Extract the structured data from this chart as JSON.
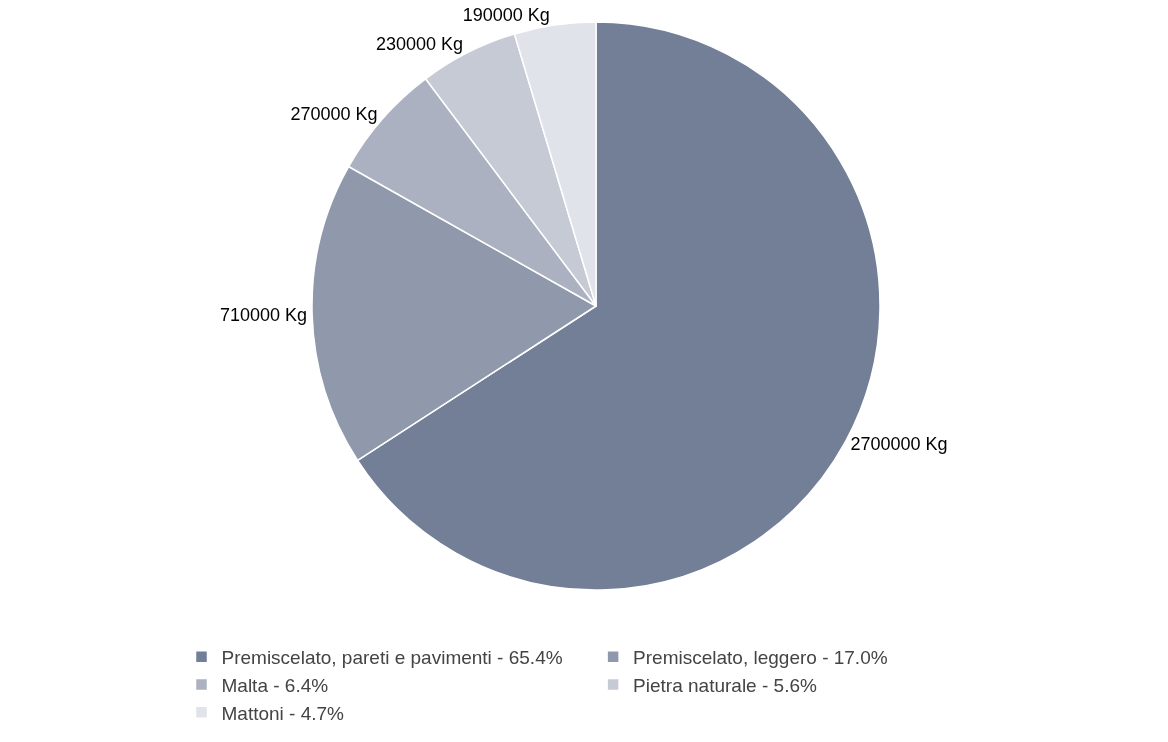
{
  "chart_data": {
    "type": "pie",
    "categories": [
      "Premiscelato, pareti e pavimenti - 65.4%",
      "Premiscelato, leggero - 17.0%",
      "Malta - 6.4%",
      "Pietra naturale - 5.6%",
      "Mattoni - 4.7%"
    ],
    "values": [
      2700000,
      710000,
      270000,
      230000,
      190000
    ],
    "value_labels": [
      "2700000 Kg",
      "710000 Kg",
      "270000 Kg",
      "230000 Kg",
      "190000 Kg"
    ],
    "colors": [
      "#737f97",
      "#9099ab",
      "#abb1c0",
      "#c6cad4",
      "#e0e3e9"
    ],
    "legend": "bottom"
  }
}
